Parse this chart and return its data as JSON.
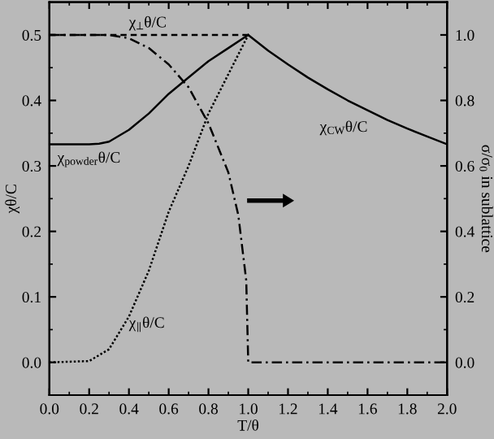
{
  "chart_data": {
    "type": "line",
    "xlabel": "T/θ",
    "ylabel": "χθ/C",
    "y2label": "σ/σ$_{0}$ in sublattice",
    "xlim": [
      0,
      2
    ],
    "ylim": [
      -0.05,
      0.55
    ],
    "y2lim": [
      -0.1,
      1.1
    ],
    "xticks": [
      {
        "value": 0,
        "label": "0.0"
      },
      {
        "value": 0.2,
        "label": "0.2"
      },
      {
        "value": 0.4,
        "label": "0.4"
      },
      {
        "value": 0.6,
        "label": "0.6"
      },
      {
        "value": 0.8,
        "label": "0.8"
      },
      {
        "value": 1,
        "label": "1.0"
      },
      {
        "value": 1.2,
        "label": "1.2"
      },
      {
        "value": 1.4,
        "label": "1.4"
      },
      {
        "value": 1.6,
        "label": "1.6"
      },
      {
        "value": 1.8,
        "label": "1.8"
      },
      {
        "value": 2,
        "label": "2.0"
      }
    ],
    "yticks": [
      {
        "value": 0,
        "label": "0.0"
      },
      0.1,
      0.2,
      0.3,
      0.4,
      0.5
    ],
    "y2ticks": [
      {
        "value": 0,
        "label": "0.0"
      },
      0.2,
      0.4,
      0.6,
      0.8,
      {
        "value": 1,
        "label": "1.0"
      }
    ],
    "series": [
      {
        "color": "#000000",
        "line_style": "solid",
        "x": [
          1.0,
          1.1,
          1.2,
          1.3,
          1.4,
          1.5,
          1.6,
          1.7,
          1.8,
          1.9,
          2.0
        ],
        "values": [
          0.5,
          0.476,
          0.455,
          0.435,
          0.417,
          0.4,
          0.385,
          0.37,
          0.357,
          0.345,
          0.333
        ]
      },
      {
        "color": "#000000",
        "line_style": "solid",
        "x": [
          0,
          0.2,
          0.25,
          0.3,
          0.4,
          0.5,
          0.6,
          0.7,
          0.8,
          0.9,
          1.0
        ],
        "values": [
          0.333,
          0.333,
          0.334,
          0.337,
          0.355,
          0.38,
          0.41,
          0.435,
          0.46,
          0.48,
          0.5
        ]
      },
      {
        "color": "#000000",
        "line_style": "dotted",
        "x": [
          0,
          0.2,
          0.3,
          0.4,
          0.5,
          0.6,
          0.7,
          0.8,
          0.9,
          1.0
        ],
        "values": [
          0,
          0.002,
          0.02,
          0.07,
          0.14,
          0.23,
          0.3,
          0.38,
          0.44,
          0.5
        ]
      },
      {
        "color": "#000000",
        "line_style": "dashed",
        "x": [
          0,
          1.0
        ],
        "values": [
          0.5,
          0.5
        ]
      },
      {
        "color": "#000000",
        "line_style": "dashdot",
        "axis": "y2",
        "x": [
          0,
          0.3,
          0.4,
          0.5,
          0.6,
          0.7,
          0.8,
          0.9,
          0.95,
          0.99,
          1.0,
          1.0,
          2.0
        ],
        "values": [
          1,
          1,
          0.99,
          0.96,
          0.91,
          0.84,
          0.73,
          0.58,
          0.45,
          0.25,
          0.0,
          0,
          0
        ]
      }
    ],
    "annotations": [
      "χ$_{⊥}$θ/C",
      "χ$_{powder}$θ/C",
      "χ$_{∥}$θ/C",
      "χ$_{CW}$θ/C"
    ]
  }
}
